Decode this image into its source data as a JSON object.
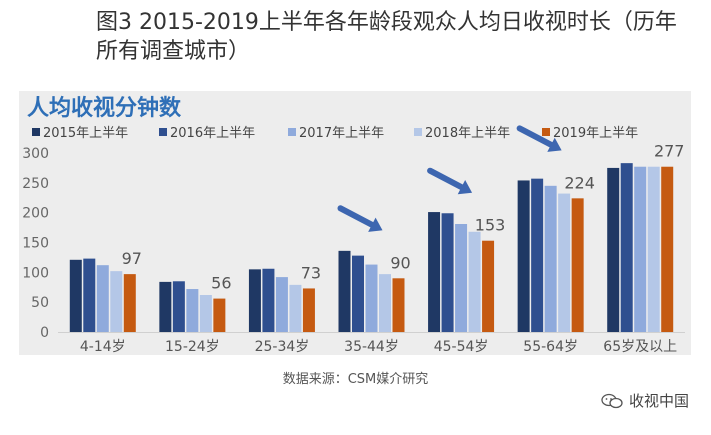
{
  "figure_title": "图3  2015-2019上半年各年龄段观众人均日收视时长（历年所有调查城市）",
  "source": "数据来源：CSM媒介研究",
  "watermark": "收视中国",
  "watermark_icon": "wechat-icon",
  "colors": {
    "series": [
      "#1f3864",
      "#2f4f8f",
      "#8faadc",
      "#b4c7e7",
      "#c55a11"
    ],
    "title": "#2e6fb7",
    "arrow": "#3d66b0",
    "panel": "#ededed"
  },
  "chart_data": {
    "type": "bar",
    "title": "人均收视分钟数",
    "categories": [
      "4-14岁",
      "15-24岁",
      "25-34岁",
      "35-44岁",
      "45-54岁",
      "55-64岁",
      "65岁及以上"
    ],
    "series": [
      {
        "name": "2015年上半年",
        "values": [
          121,
          84,
          105,
          136,
          201,
          254,
          275
        ]
      },
      {
        "name": "2016年上半年",
        "values": [
          123,
          85,
          106,
          128,
          199,
          257,
          283
        ]
      },
      {
        "name": "2017年上半年",
        "values": [
          112,
          72,
          92,
          113,
          181,
          245,
          277
        ]
      },
      {
        "name": "2018年上半年",
        "values": [
          102,
          62,
          79,
          97,
          168,
          232,
          277
        ]
      },
      {
        "name": "2019年上半年",
        "values": [
          97,
          56,
          73,
          90,
          153,
          224,
          277
        ]
      }
    ],
    "data_labels": [
      "97",
      "56",
      "73",
      "90",
      "153",
      "224",
      "277"
    ],
    "yticks": [
      "0",
      "50",
      "100",
      "150",
      "200",
      "250",
      "300"
    ],
    "ylim": [
      0,
      300
    ],
    "legend_position": "top",
    "trend_arrows_on": [
      "35-44岁",
      "45-54岁",
      "55-64岁"
    ],
    "xlabel": "",
    "ylabel": ""
  }
}
